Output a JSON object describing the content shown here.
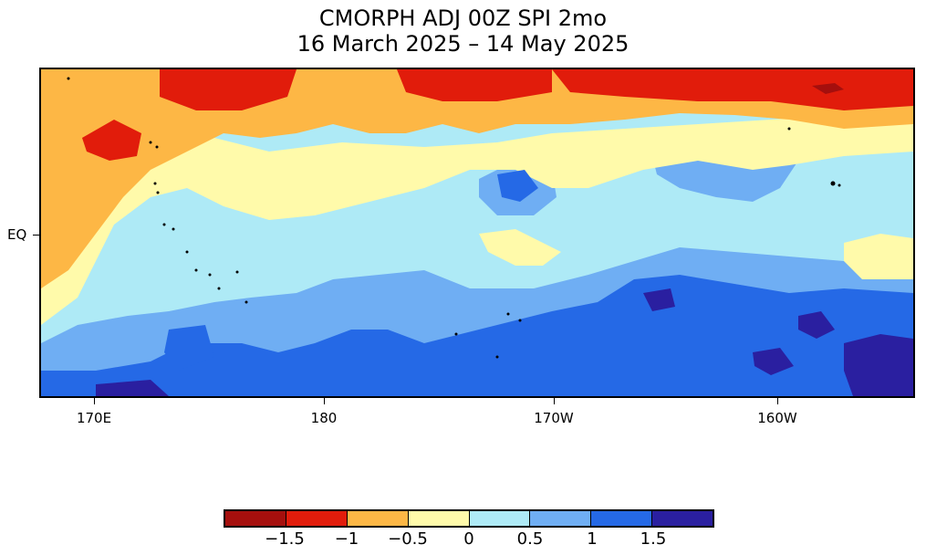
{
  "title": {
    "line1": "CMORPH ADJ 00Z SPI 2mo",
    "line2": "16 March 2025 – 14 May 2025"
  },
  "axes": {
    "x_ticks": [
      "170E",
      "180",
      "170W",
      "160W"
    ],
    "y_ticks": [
      "EQ"
    ]
  },
  "colorbar": {
    "colors": [
      "#a50f0d",
      "#e11c0b",
      "#fdb745",
      "#fffaaa",
      "#aeeaf6",
      "#6faef3",
      "#2569e6",
      "#2a1fa0"
    ],
    "labels": [
      "−1.5",
      "−1",
      "−0.5",
      "0",
      "0.5",
      "1",
      "1.5"
    ]
  }
}
